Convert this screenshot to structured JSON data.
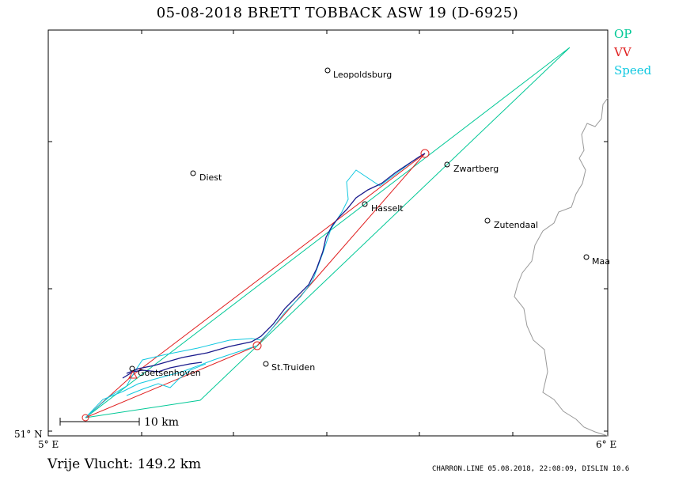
{
  "title": "05-08-2018   BRETT TOBBACK   ASW 19 (D-6925)",
  "legend": [
    {
      "label": "OP",
      "color": "#00c896"
    },
    {
      "label": "VV",
      "color": "#e02020"
    },
    {
      "label": "Speed",
      "color": "#10c8e0"
    }
  ],
  "axes": {
    "lat_label": "51° N",
    "lon_left": "5° E",
    "lon_right": "6° E"
  },
  "towns": [
    {
      "name": "Leopoldsburg"
    },
    {
      "name": "Diest"
    },
    {
      "name": "Zwartberg"
    },
    {
      "name": "Hasselt"
    },
    {
      "name": "Zutendaal"
    },
    {
      "name": "Maa"
    },
    {
      "name": "St.Truiden"
    },
    {
      "name": "Goetsenhoven"
    }
  ],
  "scale_bar": "10  km",
  "distance": "Vrije Vlucht:  149.2 km",
  "footer": "CHARRON.LINE 05.08.2018, 22:08:09, DISLIN 10.6",
  "colors": {
    "track": "#1a1a8c",
    "border": "#999999",
    "frame": "#000000"
  }
}
